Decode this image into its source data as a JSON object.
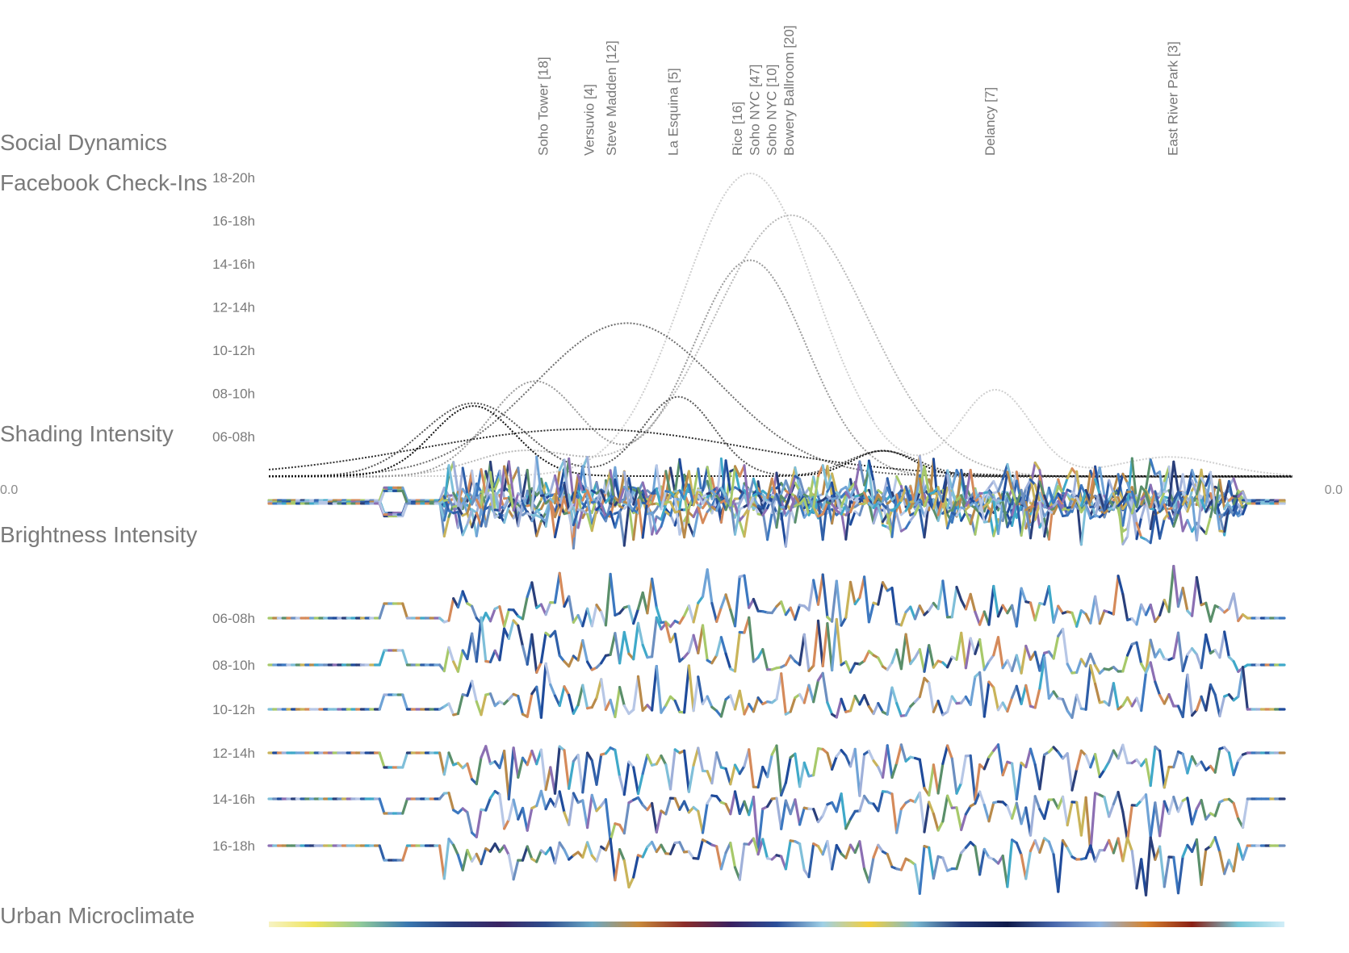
{
  "chart_data": {
    "type": "line",
    "sections": {
      "social": "Social Dynamics",
      "facebook": "Facebook Check-Ins",
      "shading": "Shading Intensity",
      "brightness": "Brightness Intensity",
      "microclimate": "Urban Microclimate"
    },
    "axis_zero_left": "0.0",
    "axis_zero_right": "0.0",
    "checkin_time_bins": [
      "18-20h",
      "16-18h",
      "14-16h",
      "12-14h",
      "10-12h",
      "08-10h",
      "06-08h"
    ],
    "venues": [
      {
        "name": "Soho Tower [18]",
        "position": 0.27
      },
      {
        "name": "Versuvio [4]",
        "position": 0.315
      },
      {
        "name": "Steve Madden [12]",
        "position": 0.337
      },
      {
        "name": "La Esquina [5]",
        "position": 0.398
      },
      {
        "name": "Rice [16]",
        "position": 0.461
      },
      {
        "name": "Soho NYC [47]",
        "position": 0.478
      },
      {
        "name": "Soho NYC [10]",
        "position": 0.495
      },
      {
        "name": "Bowery Ballroom [20]",
        "position": 0.512
      },
      {
        "name": "Delancy [7]",
        "position": 0.71
      },
      {
        "name": "East River Park [3]",
        "position": 0.89
      }
    ],
    "checkin_curves": [
      {
        "name": "18-20h",
        "shade": "#cfcfcf",
        "peaks": [
          {
            "x": 0.47,
            "y": 0.95,
            "w": 0.065
          },
          {
            "x": 0.71,
            "y": 0.27,
            "w": 0.035
          },
          {
            "x": 0.88,
            "y": 0.06,
            "w": 0.05
          }
        ]
      },
      {
        "name": "16-18h",
        "shade": "#b8b8b8",
        "peaks": [
          {
            "x": 0.51,
            "y": 0.82,
            "w": 0.075
          },
          {
            "x": 0.25,
            "y": 0.08,
            "w": 0.05
          }
        ]
      },
      {
        "name": "14-16h",
        "shade": "#9a9a9a",
        "peaks": [
          {
            "x": 0.47,
            "y": 0.68,
            "w": 0.055
          },
          {
            "x": 0.26,
            "y": 0.3,
            "w": 0.045
          }
        ]
      },
      {
        "name": "12-14h",
        "shade": "#6e6e6e",
        "peaks": [
          {
            "x": 0.35,
            "y": 0.48,
            "w": 0.09
          }
        ]
      },
      {
        "name": "10-12h",
        "shade": "#555555",
        "peaks": [
          {
            "x": 0.2,
            "y": 0.23,
            "w": 0.05
          },
          {
            "x": 0.4,
            "y": 0.25,
            "w": 0.035
          },
          {
            "x": 0.6,
            "y": 0.08,
            "w": 0.035
          }
        ]
      },
      {
        "name": "08-10h",
        "shade": "#2e2e2e",
        "peaks": [
          {
            "x": 0.31,
            "y": 0.15,
            "w": 0.16
          }
        ]
      },
      {
        "name": "06-08h",
        "shade": "#111111",
        "peaks": [
          {
            "x": 0.2,
            "y": 0.22,
            "w": 0.04
          },
          {
            "x": 0.6,
            "y": 0.08,
            "w": 0.03
          }
        ]
      }
    ],
    "brightness_bins": [
      "06-08h",
      "08-10h",
      "10-12h",
      "12-14h",
      "14-16h",
      "16-18h"
    ],
    "microclimate_colors": [
      "#f7f3c4",
      "#efe45a",
      "#8fc99b",
      "#3a78b0",
      "#2b3f7d",
      "#3b2563",
      "#2f4d8e",
      "#6aa8c6",
      "#c98a3a",
      "#8c2d2a",
      "#3a2060",
      "#2b4f9a",
      "#9fd0e6",
      "#f5cf3a",
      "#79b8d0",
      "#253a78",
      "#0f1a4a",
      "#4968ac",
      "#8fb4df",
      "#d9842c",
      "#8a1f14",
      "#78c8d8",
      "#d2eef8"
    ]
  }
}
